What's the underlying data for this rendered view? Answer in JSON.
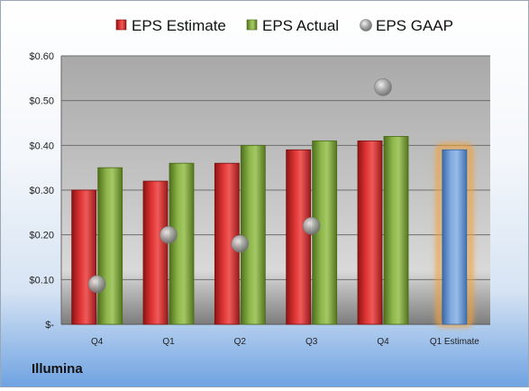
{
  "company": "Illumina",
  "chart_data": {
    "type": "bar",
    "categories": [
      "Q4",
      "Q1",
      "Q2",
      "Q3",
      "Q4",
      "Q1 Estimate"
    ],
    "series": [
      {
        "name": "EPS Estimate",
        "values": [
          0.3,
          0.32,
          0.36,
          0.39,
          0.41,
          null
        ],
        "color": "#d42a2a"
      },
      {
        "name": "EPS Actual",
        "values": [
          0.35,
          0.36,
          0.4,
          0.41,
          0.42,
          null
        ],
        "color": "#7ca33a"
      },
      {
        "name": "EPS GAAP",
        "type": "scatter",
        "values": [
          0.09,
          0.2,
          0.18,
          0.22,
          0.53,
          null
        ],
        "color": "#9a9a9a"
      }
    ],
    "forecast": {
      "category": "Q1 Estimate",
      "value": 0.39,
      "color": "#6f9fd8",
      "glow": "#f2a13a"
    },
    "yticks": [
      "$-",
      "$0.10",
      "$0.20",
      "$0.30",
      "$0.40",
      "$0.50",
      "$0.60"
    ],
    "ylim": [
      0,
      0.6
    ],
    "grid": true,
    "legend_position": "top"
  }
}
